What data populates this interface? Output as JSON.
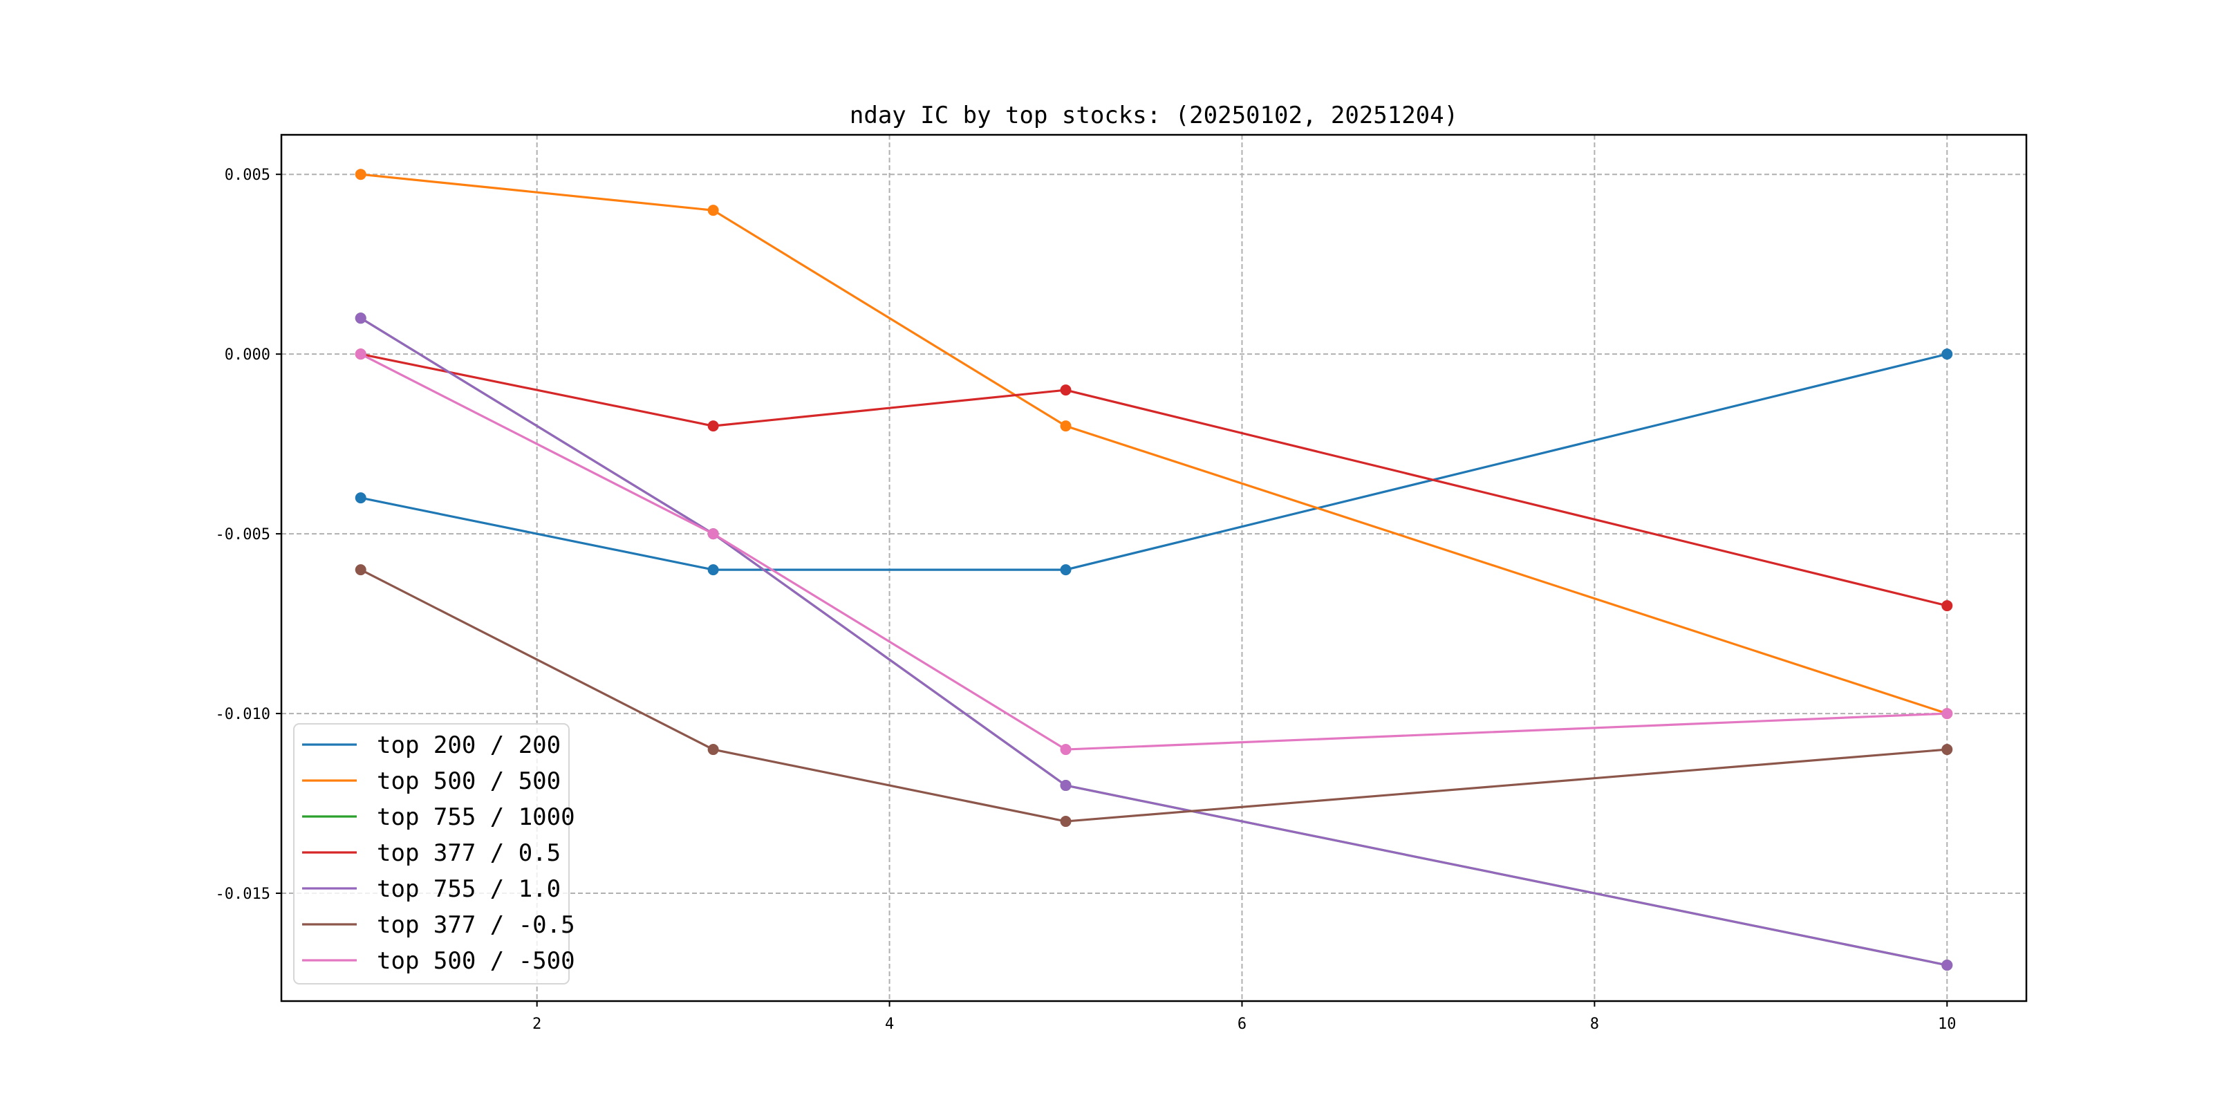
{
  "chart_data": {
    "type": "line",
    "title": "nday IC by top stocks: (20250102, 20251204)",
    "xlabel": "",
    "ylabel": "",
    "x": [
      1,
      3,
      5,
      10
    ],
    "xlim": [
      0.55,
      10.45
    ],
    "ylim": [
      -0.018,
      0.0061
    ],
    "xticks": [
      2,
      4,
      6,
      8,
      10
    ],
    "xtick_labels": [
      "2",
      "4",
      "6",
      "8",
      "10"
    ],
    "yticks": [
      0.005,
      0.0,
      -0.005,
      -0.01,
      -0.015
    ],
    "ytick_labels": [
      "0.005",
      "0.000",
      "-0.005",
      "-0.010",
      "-0.015"
    ],
    "grid": true,
    "legend_position": "bottom-left",
    "series": [
      {
        "name": "top 200 / 200",
        "color": "#1f77b4",
        "values": [
          -0.004,
          -0.006,
          -0.006,
          0.0
        ]
      },
      {
        "name": "top 500 / 500",
        "color": "#ff7f0e",
        "values": [
          0.005,
          0.004,
          -0.002,
          -0.01
        ]
      },
      {
        "name": "top 755 / 1000",
        "color": "#2ca02c",
        "values": [
          0.001,
          -0.005,
          -0.012,
          -0.017
        ]
      },
      {
        "name": "top 377 / 0.5",
        "color": "#d62728",
        "values": [
          0.0,
          -0.002,
          -0.001,
          -0.007
        ]
      },
      {
        "name": "top 755 / 1.0",
        "color": "#9467bd",
        "values": [
          0.001,
          -0.005,
          -0.012,
          -0.017
        ]
      },
      {
        "name": "top 377 / -0.5",
        "color": "#8c564b",
        "values": [
          -0.006,
          -0.011,
          -0.013,
          -0.011
        ]
      },
      {
        "name": "top 500 / -500",
        "color": "#e377c2",
        "values": [
          0.0,
          -0.005,
          -0.011,
          -0.01
        ]
      }
    ]
  }
}
